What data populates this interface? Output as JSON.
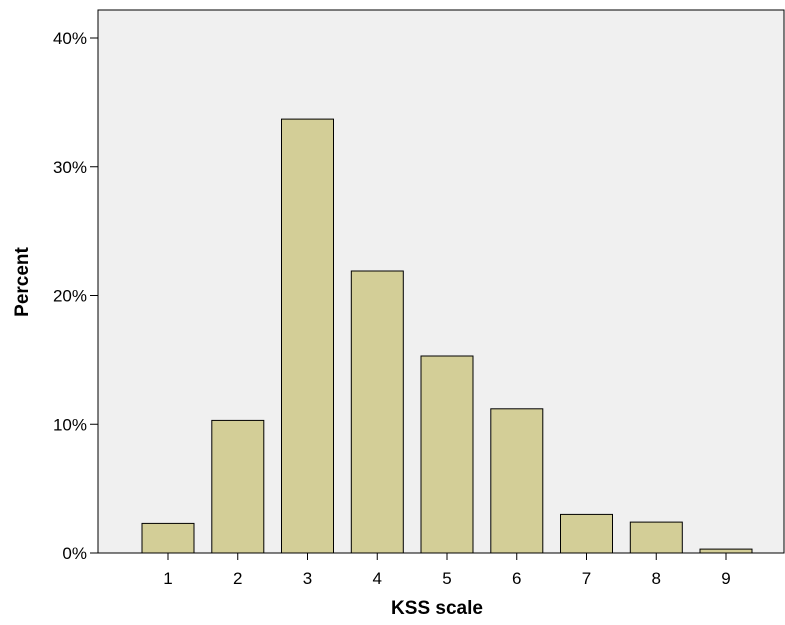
{
  "chart_data": {
    "type": "bar",
    "xlabel": "KSS scale",
    "ylabel": "Percent",
    "categories": [
      "1",
      "2",
      "3",
      "4",
      "5",
      "6",
      "7",
      "8",
      "9"
    ],
    "values": [
      2.3,
      10.3,
      33.7,
      21.9,
      15.3,
      11.2,
      3.0,
      2.4,
      0.3
    ],
    "ylim": [
      0,
      40
    ],
    "yticks": [
      0,
      10,
      20,
      30,
      40
    ],
    "ytick_labels": [
      "0%",
      "10%",
      "20%",
      "30%",
      "40%"
    ],
    "grid": false,
    "legend": "none",
    "colors": {
      "plot_background": "#f0f0f0",
      "bar_fill": "#d3ce97",
      "bar_stroke": "#000000"
    }
  }
}
